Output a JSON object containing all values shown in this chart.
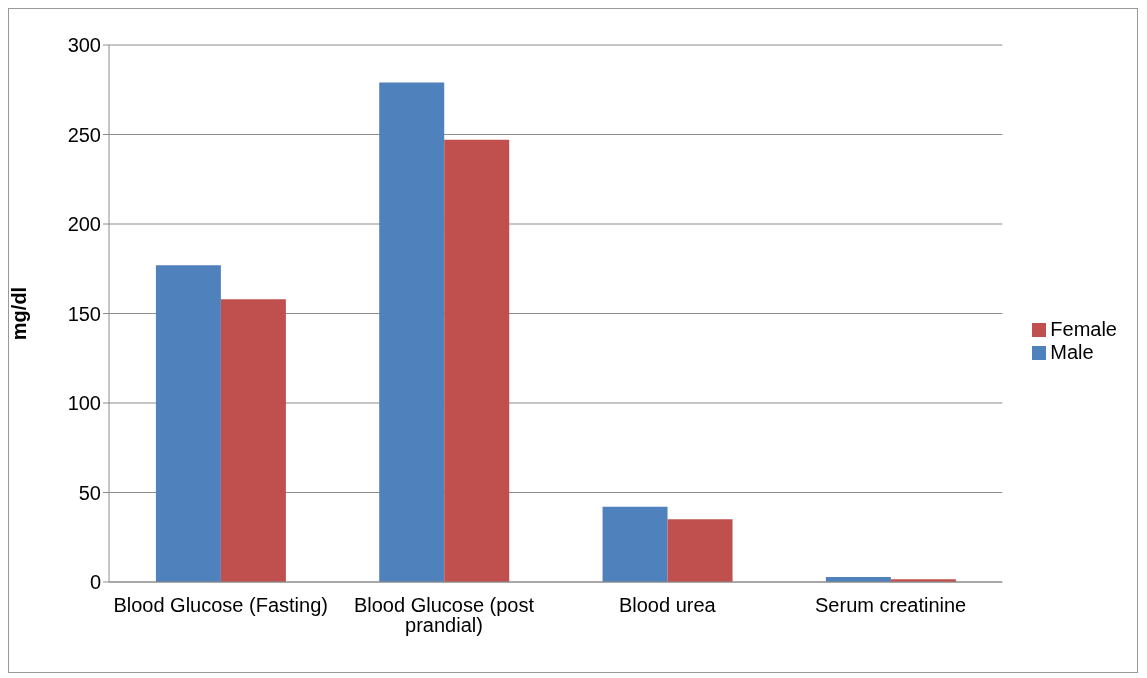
{
  "chart_data": {
    "type": "bar",
    "ylabel": "mg/dl",
    "categories": [
      "Blood Glucose (Fasting)",
      "Blood Glucose (post prandial)",
      "Blood urea",
      "Serum creatinine"
    ],
    "series": [
      {
        "name": "Male",
        "color": "#4f81bd",
        "values": [
          177,
          279,
          42,
          2.8
        ]
      },
      {
        "name": "Female",
        "color": "#c0504d",
        "values": [
          158,
          247,
          35,
          1.5
        ]
      }
    ],
    "ylim": [
      0,
      300
    ],
    "yticks": [
      0,
      50,
      100,
      150,
      200,
      250,
      300
    ],
    "grid": "y",
    "legend": "right"
  }
}
